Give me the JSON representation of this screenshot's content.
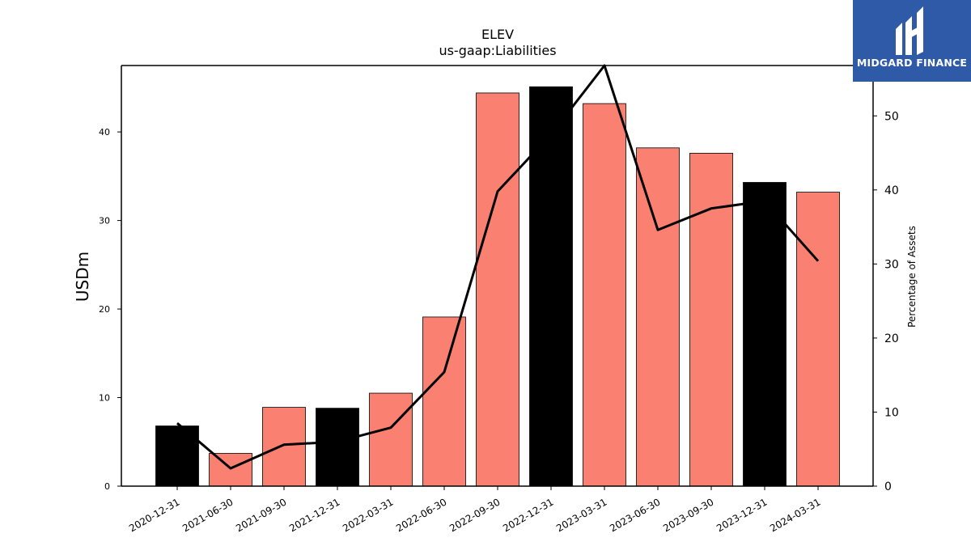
{
  "chart_data": {
    "type": "bar",
    "title": "ELEV",
    "subtitle": "us-gaap:Liabilities",
    "ylabel": "USDm",
    "y2label": "Percentage of Assets",
    "categories": [
      "2020-12-31",
      "2021-06-30",
      "2021-09-30",
      "2021-12-31",
      "2022-03-31",
      "2022-06-30",
      "2022-09-30",
      "2022-12-31",
      "2023-03-31",
      "2023-06-30",
      "2023-09-30",
      "2023-12-31",
      "2024-03-31"
    ],
    "series": [
      {
        "type": "bar",
        "axis": "left",
        "values": [
          6.8,
          3.7,
          8.9,
          8.8,
          10.5,
          19.1,
          44.4,
          45.1,
          43.2,
          38.2,
          37.6,
          34.3,
          33.2
        ],
        "colors": [
          "#000000",
          "#fa8072",
          "#fa8072",
          "#000000",
          "#fa8072",
          "#fa8072",
          "#fa8072",
          "#000000",
          "#fa8072",
          "#fa8072",
          "#fa8072",
          "#000000",
          "#fa8072"
        ]
      },
      {
        "type": "line",
        "axis": "right",
        "color": "#000000",
        "values": [
          8.5,
          2.4,
          5.6,
          6.0,
          7.9,
          15.4,
          39.8,
          47.5,
          56.8,
          34.6,
          37.5,
          38.5,
          30.4
        ]
      }
    ],
    "ylim": [
      0,
      47.5
    ],
    "y2lim": [
      0,
      56.8
    ],
    "yticks": [
      0,
      10,
      20,
      30,
      40
    ],
    "y2ticks": [
      0,
      10,
      20,
      30,
      40,
      50
    ],
    "grid": false
  },
  "logo": {
    "text": "MIDGARD FINANCE",
    "bg_color": "#2f5aa8"
  }
}
